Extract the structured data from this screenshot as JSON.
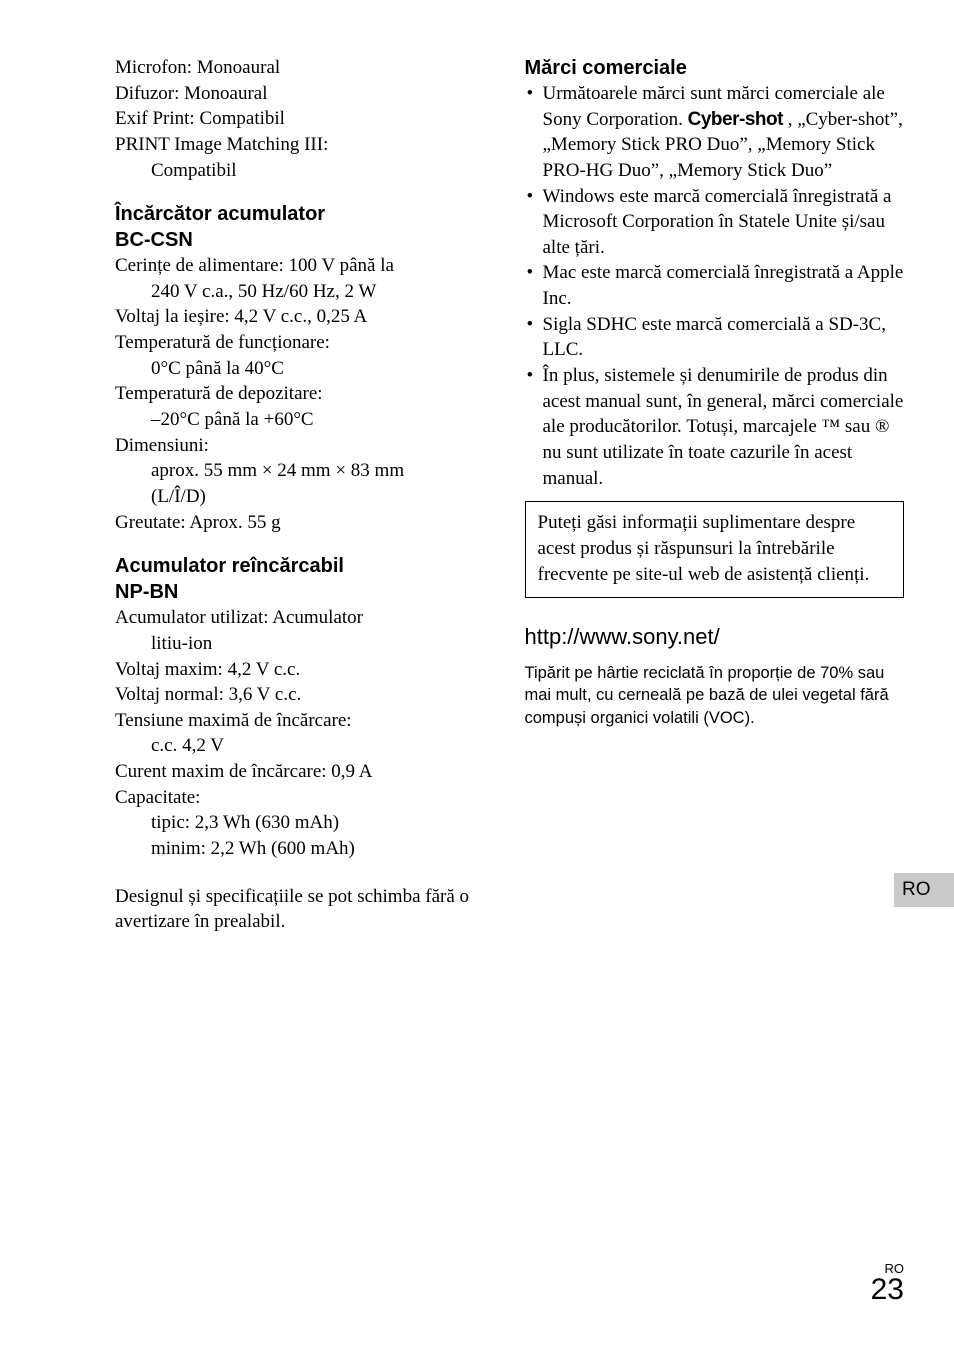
{
  "left": {
    "topSpecs": [
      {
        "label": "Microfon: Monoaural"
      },
      {
        "label": "Difuzor: Monoaural"
      },
      {
        "label": "Exif Print: Compatibil"
      },
      {
        "label": "PRINT Image Matching III:"
      },
      {
        "label": "Compatibil",
        "indent": true
      }
    ],
    "chargerHeading1": "Încărcător acumulator",
    "chargerHeading2": "BC-CSN",
    "chargerSpecs": [
      {
        "label": "Cerințe de alimentare: 100 V până la"
      },
      {
        "label": "240 V c.a., 50 Hz/60 Hz, 2 W",
        "indent": true
      },
      {
        "label": "Voltaj la ieșire: 4,2 V c.c., 0,25 A"
      },
      {
        "label": "Temperatură de funcționare:"
      },
      {
        "label": "0°C până la 40°C",
        "indent": true
      },
      {
        "label": "Temperatură de depozitare:"
      },
      {
        "label": "–20°C până la +60°C",
        "indent": true
      },
      {
        "label": "Dimensiuni:"
      },
      {
        "label": "aprox. 55 mm × 24 mm × 83 mm",
        "indent": true
      },
      {
        "label": "(L/Î/D)",
        "indent": true
      },
      {
        "label": "Greutate: Aprox. 55 g"
      }
    ],
    "batteryHeading1": "Acumulator reîncărcabil",
    "batteryHeading2": "NP-BN",
    "batterySpecs": [
      {
        "label": "Acumulator utilizat: Acumulator"
      },
      {
        "label": "litiu-ion",
        "indent": true
      },
      {
        "label": "Voltaj maxim: 4,2 V c.c."
      },
      {
        "label": "Voltaj normal: 3,6 V c.c."
      },
      {
        "label": "Tensiune maximă de încărcare:"
      },
      {
        "label": "c.c. 4,2 V",
        "indent": true
      },
      {
        "label": "Curent maxim de încărcare: 0,9 A"
      },
      {
        "label": "Capacitate:"
      },
      {
        "label": "tipic: 2,3 Wh (630 mAh)",
        "indent": true
      },
      {
        "label": "minim: 2,2 Wh (600 mAh)",
        "indent": true
      }
    ],
    "designNote": "Designul și specificațiile se pot schimba fără o avertizare în prealabil."
  },
  "right": {
    "trademarksHeading": "Mărci comerciale",
    "trademarkBullets": [
      "Următoarele mărci sunt mărci comerciale ale Sony Corporation. __CYBERSHOT__ , „Cyber-shot”, „Memory Stick PRO Duo”, „Memory Stick PRO-HG Duo”, „Memory Stick Duo”",
      "Windows este marcă comercială înregistrată a Microsoft Corporation în Statele Unite și/sau alte țări.",
      "Mac este marcă comercială înregistrată a Apple Inc.",
      "Sigla SDHC este marcă comercială a SD-3C, LLC.",
      "În plus, sistemele și denumirile de produs din acest manual sunt, în general, mărci comerciale ale producătorilor. Totuși, marcajele ™ sau ® nu sunt utilizate în toate cazurile în acest manual."
    ],
    "cybershotLogo": "Cyber-shot",
    "infoBox": "Puteți găsi informații suplimentare despre acest produs și răspunsuri la întrebările frecvente pe site-ul web de asistență clienți.",
    "url": "http://www.sony.net/",
    "printNote": "Tipărit pe hârtie reciclată în proporție de 70% sau mai mult, cu cerneală pe bază de ulei vegetal fără compuși organici volatili (VOC)."
  },
  "tab": "RO",
  "pageLang": "RO",
  "pageNum": "23"
}
